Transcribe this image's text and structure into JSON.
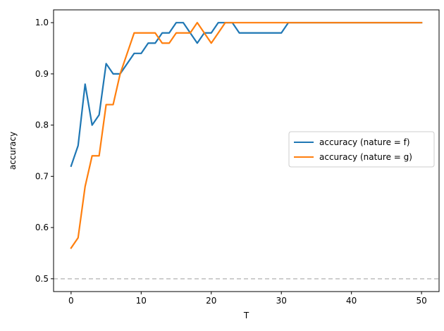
{
  "chart_data": {
    "type": "line",
    "title": "",
    "xlabel": "T",
    "ylabel": "accuracy",
    "xlim": [
      -2.5,
      52.5
    ],
    "ylim": [
      0.475,
      1.025
    ],
    "xticks": [
      0,
      10,
      20,
      30,
      40,
      50
    ],
    "yticks": [
      0.5,
      0.6,
      0.7,
      0.8,
      0.9,
      1.0
    ],
    "xtick_labels": [
      "0",
      "10",
      "20",
      "30",
      "40",
      "50"
    ],
    "ytick_labels": [
      "0.5",
      "0.6",
      "0.7",
      "0.8",
      "0.9",
      "1.0"
    ],
    "grid": false,
    "legend_position": "center-right",
    "reference_line": {
      "y": 0.5,
      "style": "dashed",
      "color": "#bfbfbf"
    },
    "x": [
      0,
      1,
      2,
      3,
      4,
      5,
      6,
      7,
      8,
      9,
      10,
      11,
      12,
      13,
      14,
      15,
      16,
      17,
      18,
      19,
      20,
      21,
      22,
      23,
      24,
      25,
      26,
      27,
      28,
      29,
      30,
      31,
      32,
      33,
      34,
      35,
      36,
      37,
      38,
      39,
      40,
      41,
      42,
      43,
      44,
      45,
      46,
      47,
      48,
      49,
      50
    ],
    "series": [
      {
        "name": "accuracy (nature = f)",
        "color": "#1f77b4",
        "values": [
          0.72,
          0.76,
          0.88,
          0.8,
          0.82,
          0.92,
          0.9,
          0.9,
          0.92,
          0.94,
          0.94,
          0.96,
          0.96,
          0.98,
          0.98,
          1.0,
          1.0,
          0.98,
          0.96,
          0.98,
          0.98,
          1.0,
          1.0,
          1.0,
          0.98,
          0.98,
          0.98,
          0.98,
          0.98,
          0.98,
          0.98,
          1.0,
          1.0,
          1.0,
          1.0,
          1.0,
          1.0,
          1.0,
          1.0,
          1.0,
          1.0,
          1.0,
          1.0,
          1.0,
          1.0,
          1.0,
          1.0,
          1.0,
          1.0,
          1.0,
          1.0
        ]
      },
      {
        "name": "accuracy (nature = g)",
        "color": "#ff7f0e",
        "values": [
          0.56,
          0.58,
          0.68,
          0.74,
          0.74,
          0.84,
          0.84,
          0.9,
          0.94,
          0.98,
          0.98,
          0.98,
          0.98,
          0.96,
          0.96,
          0.98,
          0.98,
          0.98,
          1.0,
          0.98,
          0.96,
          0.98,
          1.0,
          1.0,
          1.0,
          1.0,
          1.0,
          1.0,
          1.0,
          1.0,
          1.0,
          1.0,
          1.0,
          1.0,
          1.0,
          1.0,
          1.0,
          1.0,
          1.0,
          1.0,
          1.0,
          1.0,
          1.0,
          1.0,
          1.0,
          1.0,
          1.0,
          1.0,
          1.0,
          1.0,
          1.0
        ]
      }
    ]
  }
}
